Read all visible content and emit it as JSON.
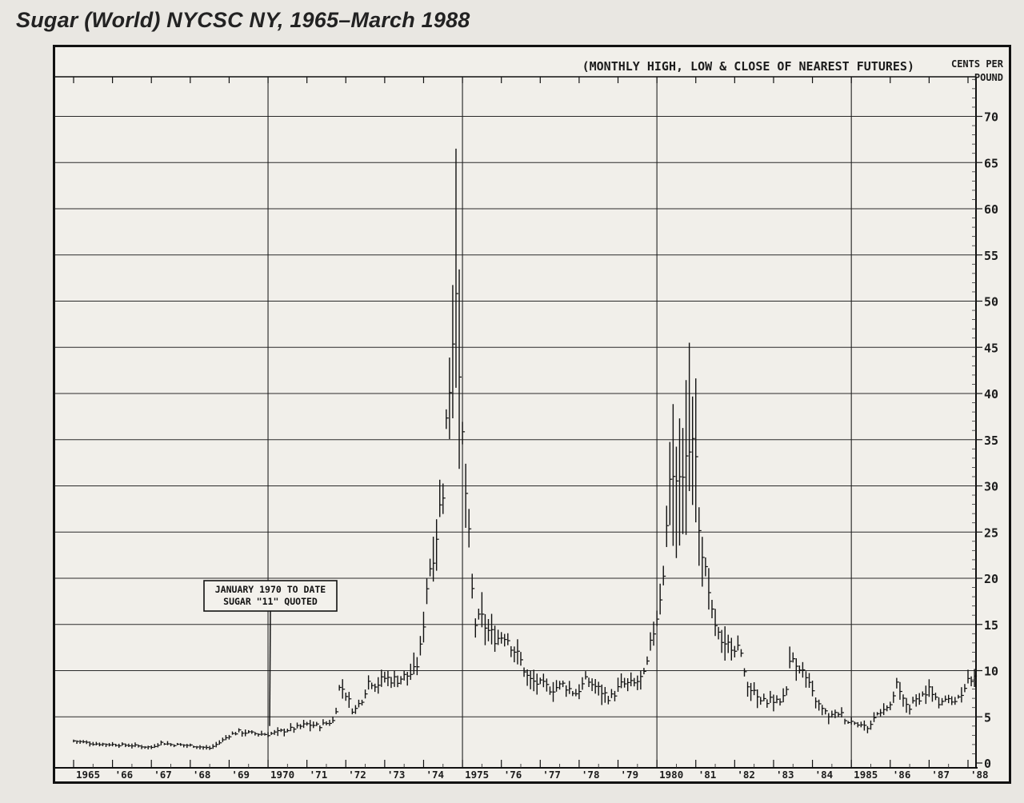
{
  "page": {
    "title": "Sugar (World) NYCSC NY, 1965–March 1988"
  },
  "chart_data": {
    "type": "bar",
    "subtype": "ohlc-monthly",
    "title": "Sugar (World) NYCSC NY, 1965–March 1988",
    "subtitle": "(MONTHLY HIGH, LOW & CLOSE OF NEAREST FUTURES)",
    "ylabel": "CENTS PER POUND",
    "ylim": [
      0,
      75
    ],
    "yticks": [
      0,
      5,
      10,
      15,
      20,
      25,
      30,
      35,
      40,
      45,
      50,
      55,
      60,
      65,
      70
    ],
    "xlim": [
      1965,
      1988.35
    ],
    "x_tick_labels": [
      {
        "year": 1965,
        "label": "1965"
      },
      {
        "year": 1966,
        "label": "'66"
      },
      {
        "year": 1967,
        "label": "'67"
      },
      {
        "year": 1968,
        "label": "'68"
      },
      {
        "year": 1969,
        "label": "'69"
      },
      {
        "year": 1970,
        "label": "1970"
      },
      {
        "year": 1971,
        "label": "'71"
      },
      {
        "year": 1972,
        "label": "'72"
      },
      {
        "year": 1973,
        "label": "'73"
      },
      {
        "year": 1974,
        "label": "'74"
      },
      {
        "year": 1975,
        "label": "1975"
      },
      {
        "year": 1976,
        "label": "'76"
      },
      {
        "year": 1977,
        "label": "'77"
      },
      {
        "year": 1978,
        "label": "'78"
      },
      {
        "year": 1979,
        "label": "'79"
      },
      {
        "year": 1980,
        "label": "1980"
      },
      {
        "year": 1981,
        "label": "'81"
      },
      {
        "year": 1982,
        "label": "'82"
      },
      {
        "year": 1983,
        "label": "'83"
      },
      {
        "year": 1984,
        "label": "'84"
      },
      {
        "year": 1985,
        "label": "1985"
      },
      {
        "year": 1986,
        "label": "'86"
      },
      {
        "year": 1987,
        "label": "'87"
      },
      {
        "year": 1988,
        "label": "'88"
      }
    ],
    "annotation": {
      "lines": [
        "JANUARY 1970 TO DATE",
        "SUGAR \"11\" QUOTED"
      ],
      "x": 1970.0,
      "y": 4.0
    },
    "grid": true,
    "close_anchors": [
      [
        1965.0,
        2.4
      ],
      [
        1965.5,
        2.1
      ],
      [
        1966.0,
        2.0
      ],
      [
        1966.5,
        1.9
      ],
      [
        1967.0,
        1.7
      ],
      [
        1967.25,
        2.2
      ],
      [
        1967.5,
        2.0
      ],
      [
        1968.0,
        1.9
      ],
      [
        1968.5,
        1.6
      ],
      [
        1968.75,
        2.2
      ],
      [
        1969.0,
        3.0
      ],
      [
        1969.25,
        3.4
      ],
      [
        1969.6,
        3.2
      ],
      [
        1970.0,
        3.1
      ],
      [
        1970.4,
        3.5
      ],
      [
        1970.8,
        3.9
      ],
      [
        1971.0,
        4.2
      ],
      [
        1971.3,
        4.0
      ],
      [
        1971.7,
        4.6
      ],
      [
        1971.85,
        8.5
      ],
      [
        1972.0,
        7.5
      ],
      [
        1972.2,
        5.5
      ],
      [
        1972.4,
        6.8
      ],
      [
        1972.6,
        9.0
      ],
      [
        1972.8,
        8.5
      ],
      [
        1973.0,
        9.2
      ],
      [
        1973.3,
        9.0
      ],
      [
        1973.6,
        9.5
      ],
      [
        1973.8,
        10.0
      ],
      [
        1973.95,
        13.0
      ],
      [
        1974.1,
        20.0
      ],
      [
        1974.3,
        24.0
      ],
      [
        1974.5,
        30.0
      ],
      [
        1974.6,
        38.0
      ],
      [
        1974.75,
        45.0
      ],
      [
        1974.83,
        54.0
      ],
      [
        1974.9,
        42.0
      ],
      [
        1975.0,
        35.0
      ],
      [
        1975.1,
        28.0
      ],
      [
        1975.2,
        22.0
      ],
      [
        1975.3,
        15.0
      ],
      [
        1975.5,
        15.5
      ],
      [
        1975.7,
        14.0
      ],
      [
        1975.9,
        13.5
      ],
      [
        1976.1,
        14.0
      ],
      [
        1976.3,
        12.5
      ],
      [
        1976.5,
        11.0
      ],
      [
        1976.7,
        9.0
      ],
      [
        1977.0,
        8.5
      ],
      [
        1977.3,
        8.0
      ],
      [
        1977.6,
        8.5
      ],
      [
        1977.9,
        7.5
      ],
      [
        1978.2,
        9.0
      ],
      [
        1978.5,
        8.0
      ],
      [
        1978.8,
        7.0
      ],
      [
        1979.1,
        8.5
      ],
      [
        1979.4,
        8.5
      ],
      [
        1979.7,
        9.5
      ],
      [
        1979.85,
        13.0
      ],
      [
        1980.0,
        16.0
      ],
      [
        1980.15,
        20.0
      ],
      [
        1980.3,
        28.0
      ],
      [
        1980.45,
        33.0
      ],
      [
        1980.6,
        30.0
      ],
      [
        1980.8,
        36.0
      ],
      [
        1980.95,
        35.0
      ],
      [
        1981.05,
        28.0
      ],
      [
        1981.2,
        22.0
      ],
      [
        1981.35,
        17.0
      ],
      [
        1981.5,
        15.0
      ],
      [
        1981.7,
        12.0
      ],
      [
        1981.9,
        13.0
      ],
      [
        1982.1,
        12.5
      ],
      [
        1982.3,
        9.0
      ],
      [
        1982.5,
        7.5
      ],
      [
        1982.7,
        6.5
      ],
      [
        1982.9,
        7.0
      ],
      [
        1983.1,
        6.5
      ],
      [
        1983.3,
        7.5
      ],
      [
        1983.45,
        11.5
      ],
      [
        1983.6,
        11.0
      ],
      [
        1983.8,
        9.5
      ],
      [
        1984.0,
        7.5
      ],
      [
        1984.2,
        6.0
      ],
      [
        1984.45,
        5.0
      ],
      [
        1984.7,
        5.5
      ],
      [
        1984.9,
        4.5
      ],
      [
        1985.1,
        4.5
      ],
      [
        1985.3,
        4.0
      ],
      [
        1985.45,
        3.8
      ],
      [
        1985.6,
        5.0
      ],
      [
        1985.8,
        6.0
      ],
      [
        1986.0,
        6.0
      ],
      [
        1986.15,
        8.5
      ],
      [
        1986.3,
        7.0
      ],
      [
        1986.5,
        6.0
      ],
      [
        1986.7,
        7.0
      ],
      [
        1986.9,
        7.5
      ],
      [
        1987.0,
        8.0
      ],
      [
        1987.2,
        6.5
      ],
      [
        1987.4,
        7.0
      ],
      [
        1987.6,
        6.5
      ],
      [
        1987.8,
        7.5
      ],
      [
        1988.0,
        9.0
      ],
      [
        1988.15,
        9.0
      ]
    ]
  }
}
